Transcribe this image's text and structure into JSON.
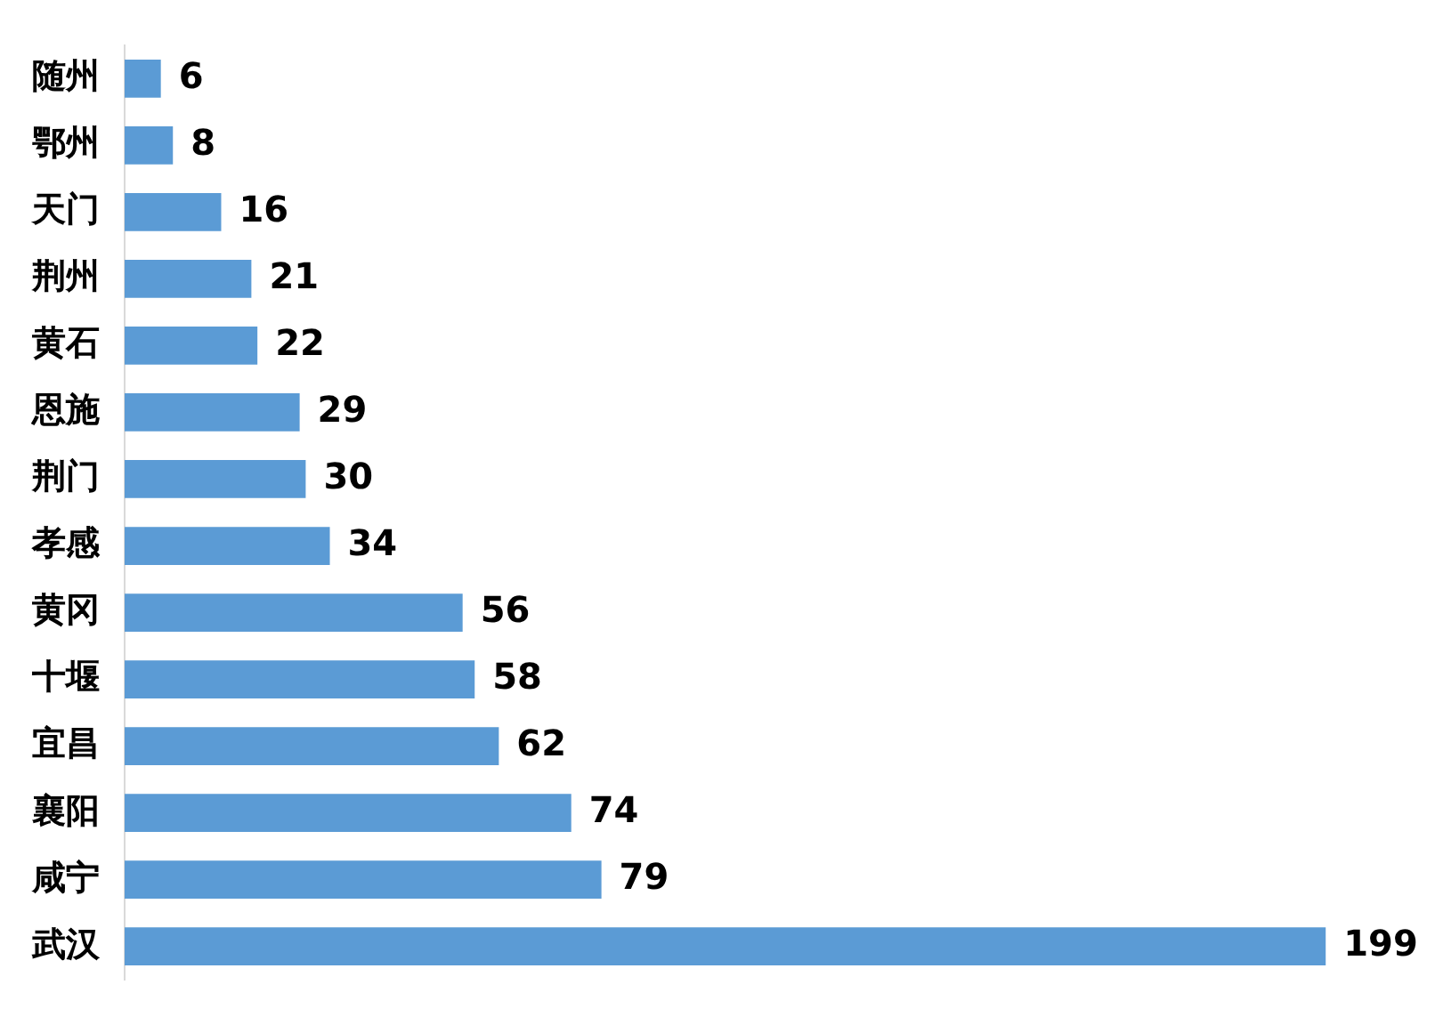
{
  "chart_data": {
    "type": "bar",
    "orientation": "horizontal",
    "categories": [
      "随州",
      "鄂州",
      "天门",
      "荆州",
      "黄石",
      "恩施",
      "荆门",
      "孝感",
      "黄冈",
      "十堰",
      "宜昌",
      "襄阳",
      "咸宁",
      "武汉"
    ],
    "values": [
      6,
      8,
      16,
      21,
      22,
      29,
      30,
      34,
      56,
      58,
      62,
      74,
      79,
      199
    ],
    "color": "#5b9bd5",
    "data_labels": true,
    "tick_labels": "y",
    "legend": false
  }
}
